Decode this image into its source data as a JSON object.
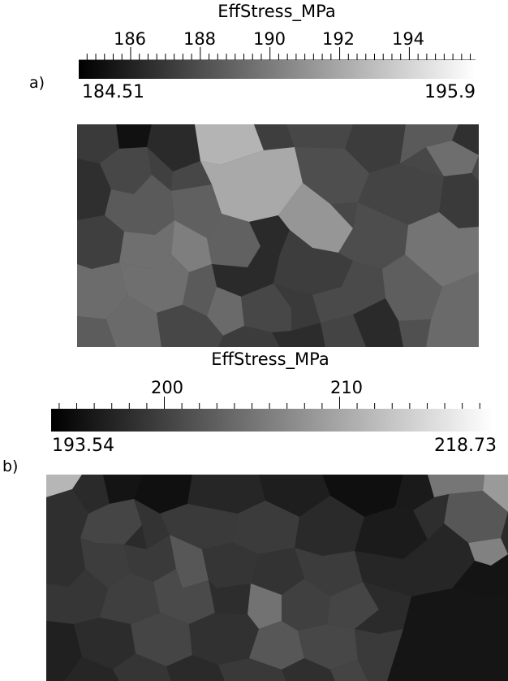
{
  "panel_a": {
    "label": "a)",
    "colorbar": {
      "title": "EffStress_MPa",
      "min_label": "184.51",
      "max_label": "195.9",
      "min": 184.51,
      "max": 195.9,
      "major_ticks": [
        "186",
        "188",
        "190",
        "192",
        "194"
      ],
      "major_values": [
        186,
        188,
        190,
        192,
        194
      ],
      "minor_step": 0.25,
      "gradient_start": "#000000",
      "gradient_end": "#ffffff"
    }
  },
  "panel_b": {
    "label": "b)",
    "colorbar": {
      "title": "EffStress_MPa",
      "min_label": "193.54",
      "max_label": "218.73",
      "min": 193.54,
      "max": 218.73,
      "major_ticks": [
        "200",
        "210"
      ],
      "major_values": [
        200,
        210
      ],
      "minor_step": 1,
      "gradient_start": "#000000",
      "gradient_end": "#ffffff"
    }
  }
}
